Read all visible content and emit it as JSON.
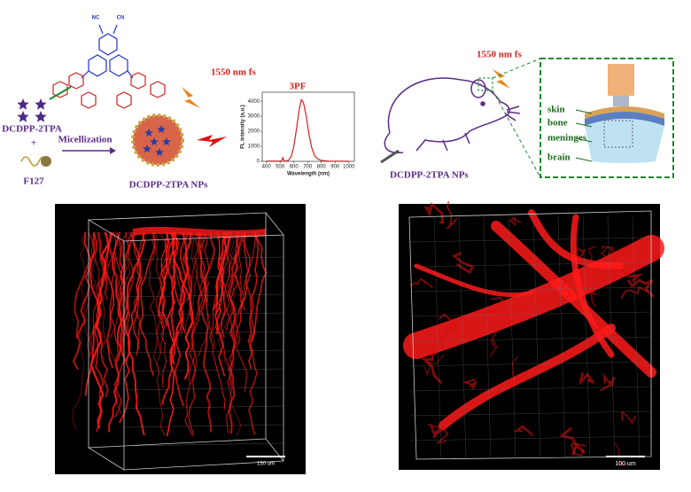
{
  "schematic": {
    "molecule_labels": [
      "NC",
      "CN"
    ],
    "dye_name": "DCDPP-2TPA",
    "plus": "+",
    "polymer_name": "F127",
    "process": "Micellization",
    "laser": "1550 nm fs",
    "nanoparticle_name": "DCDPP-2TPA NPs"
  },
  "chart_data": {
    "type": "line",
    "title": "3PF",
    "xlabel": "Wavelength (nm)",
    "ylabel": "FL intensity (a.u.)",
    "x": [
      400,
      480,
      510,
      520,
      530,
      560,
      580,
      600,
      620,
      640,
      655,
      670,
      690,
      710,
      730,
      750,
      770,
      800,
      850,
      900,
      1000
    ],
    "values": [
      20,
      20,
      20,
      250,
      20,
      60,
      300,
      1000,
      2200,
      3500,
      4100,
      3900,
      3000,
      1800,
      900,
      400,
      180,
      60,
      20,
      10,
      5
    ],
    "color": "#d42020",
    "xlim": [
      370,
      1040
    ],
    "ylim": [
      0,
      4600
    ],
    "xticks": [
      400,
      500,
      600,
      700,
      800,
      900,
      1000
    ],
    "yticks": [
      0,
      1000,
      2000,
      3000,
      4000
    ]
  },
  "mouse_panel": {
    "laser": "1550 nm fs",
    "injection": "DCDPP-2TPA NPs",
    "layers": [
      "skin",
      "bone",
      "meninges",
      "brain"
    ]
  },
  "images": {
    "left_scale_bar": "150 um",
    "right_scale_bar": "100 um"
  }
}
